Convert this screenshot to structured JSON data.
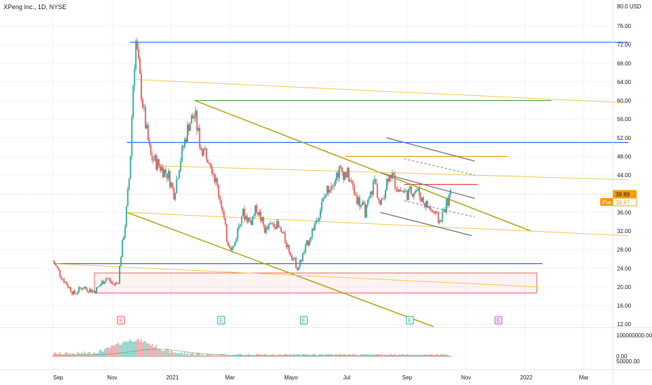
{
  "ticker": "XPeng Inc., 1D, NYSE",
  "currency_label": "80.0 USD",
  "colors": {
    "up": "#26a69a",
    "down": "#ef5350",
    "blue_line": "#2962ff",
    "yellow_line": "#f2c94c",
    "olive_line": "#b5a21a",
    "green_line": "#43a047",
    "orange_line": "#f59d0c",
    "red_line": "#e53935",
    "gray_line": "#787b86",
    "current_price_bg": "#f59d0c",
    "pre_bg": "#ff9800"
  },
  "price_axis": {
    "ticks": [
      "76.00",
      "72.00",
      "68.00",
      "64.00",
      "60.00",
      "56.00",
      "52.00",
      "48.00",
      "44.00",
      "40.00",
      "36.00",
      "32.00",
      "28.00",
      "24.00",
      "20.00",
      "16.00",
      "12.00"
    ],
    "tick_values": [
      76,
      72,
      68,
      64,
      60,
      56,
      52,
      48,
      44,
      40,
      36,
      32,
      28,
      24,
      20,
      16,
      12
    ],
    "current_price": "39.89",
    "current_value": 39.89,
    "pre_label": "Pre",
    "pre_price": "39.87"
  },
  "volume_axis": {
    "top_label": "100000000.00",
    "zero_label": "0.00",
    "bottom_label": "50000.00"
  },
  "time_axis": {
    "labels": [
      "Sep",
      "Nov",
      "2021",
      "Mar",
      "Mayo",
      "Jul",
      "Sep",
      "Nov",
      "2022",
      "Mar"
    ],
    "months_offset": [
      0,
      2,
      4,
      6,
      8,
      10,
      12,
      14,
      16,
      18
    ]
  },
  "earnings_markers": [
    {
      "label": "E",
      "month": 2.3,
      "kind": "past-red"
    },
    {
      "label": "E",
      "month": 5.7,
      "kind": "past-green"
    },
    {
      "label": "E",
      "month": 8.5,
      "kind": "past-green"
    },
    {
      "label": "E",
      "month": 12.1,
      "kind": "past-green"
    },
    {
      "label": "E",
      "month": 15.1,
      "kind": "future"
    }
  ],
  "chart_data": {
    "type": "candlestick",
    "title": "XPeng Inc., 1D, NYSE",
    "y_unit": "USD",
    "ylim": [
      12,
      80
    ],
    "price_anchors": [
      [
        0,
        25.5
      ],
      [
        0.3,
        22
      ],
      [
        0.7,
        18.5
      ],
      [
        1.0,
        20
      ],
      [
        1.4,
        19
      ],
      [
        1.8,
        22
      ],
      [
        2.05,
        20.5
      ],
      [
        2.2,
        21
      ],
      [
        2.3,
        27
      ],
      [
        2.45,
        34
      ],
      [
        2.6,
        45
      ],
      [
        2.7,
        62
      ],
      [
        2.8,
        73
      ],
      [
        2.95,
        64
      ],
      [
        3.1,
        56
      ],
      [
        3.3,
        48
      ],
      [
        3.6,
        46
      ],
      [
        3.9,
        44
      ],
      [
        4.1,
        40
      ],
      [
        4.3,
        47
      ],
      [
        4.6,
        55
      ],
      [
        4.8,
        57
      ],
      [
        5.0,
        50
      ],
      [
        5.3,
        48
      ],
      [
        5.5,
        43
      ],
      [
        5.7,
        38
      ],
      [
        5.9,
        30
      ],
      [
        6.1,
        28
      ],
      [
        6.4,
        36
      ],
      [
        6.7,
        34
      ],
      [
        6.9,
        37
      ],
      [
        7.2,
        32
      ],
      [
        7.5,
        34
      ],
      [
        7.8,
        31
      ],
      [
        8.0,
        28
      ],
      [
        8.3,
        24
      ],
      [
        8.6,
        29
      ],
      [
        8.9,
        34
      ],
      [
        9.3,
        41
      ],
      [
        9.7,
        45
      ],
      [
        10.0,
        44
      ],
      [
        10.3,
        39
      ],
      [
        10.6,
        36
      ],
      [
        10.9,
        43
      ],
      [
        11.1,
        37
      ],
      [
        11.4,
        45
      ],
      [
        11.7,
        41
      ],
      [
        12.0,
        40
      ],
      [
        12.3,
        41
      ],
      [
        12.6,
        38
      ],
      [
        12.9,
        36
      ],
      [
        13.1,
        34
      ],
      [
        13.35,
        38
      ],
      [
        13.5,
        39.89
      ]
    ],
    "volume_peak_month": 2.75,
    "drawn_levels": [
      {
        "value": 72.5,
        "color": "blue",
        "from": 2.6,
        "to": 19.5
      },
      {
        "value": 51,
        "color": "blue",
        "from": 2.5,
        "to": 19.5
      },
      {
        "value": 25,
        "color": "blue",
        "from": 0,
        "to": 16.6
      },
      {
        "value": 60,
        "color": "green",
        "from": 4.8,
        "to": 16.9
      },
      {
        "value": 48,
        "color": "orange",
        "from": 9.9,
        "to": 15.4
      },
      {
        "value": 42,
        "color": "red",
        "from": 11.9,
        "to": 14.4
      }
    ],
    "drawn_lines": [
      {
        "from": [
          4.8,
          60
        ],
        "to": [
          16.2,
          32
        ],
        "color": "olive"
      },
      {
        "from": [
          2.5,
          36
        ],
        "to": [
          12.9,
          11.5
        ],
        "color": "olive"
      },
      {
        "from": [
          2.8,
          64.5
        ],
        "to": [
          19.5,
          59.5
        ],
        "color": "yellow"
      },
      {
        "from": [
          3.5,
          46
        ],
        "to": [
          19.5,
          43
        ],
        "color": "yellow"
      },
      {
        "from": [
          2.5,
          36
        ],
        "to": [
          19.5,
          31
        ],
        "color": "yellow"
      },
      {
        "from": [
          0,
          25
        ],
        "to": [
          16.5,
          20
        ],
        "color": "yellow"
      },
      {
        "from": [
          11.3,
          52
        ],
        "to": [
          14.3,
          47
        ],
        "color": "gray"
      },
      {
        "from": [
          11.1,
          44.5
        ],
        "to": [
          14.3,
          39
        ],
        "color": "gray"
      },
      {
        "from": [
          11.1,
          36
        ],
        "to": [
          14.2,
          31
        ],
        "color": "gray"
      },
      {
        "from": [
          11.9,
          47.5
        ],
        "to": [
          14.3,
          44
        ],
        "color": "gray-dashed"
      },
      {
        "from": [
          11.9,
          38.5
        ],
        "to": [
          14.3,
          35
        ],
        "color": "gray-dashed"
      }
    ],
    "zone": {
      "from_month": 1.4,
      "to_month": 16.4,
      "top": 23,
      "bottom": 18.7
    }
  }
}
